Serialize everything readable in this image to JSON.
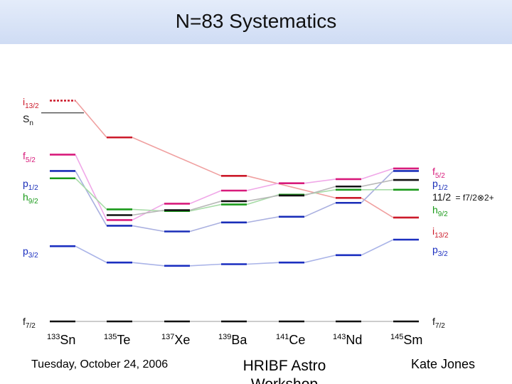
{
  "slide": {
    "title": "N=83 Systematics",
    "footer_date": "Tuesday, October 24, 2006",
    "footer_event": "HRIBF Astro Workshop",
    "footer_author": "Kate Jones"
  },
  "colors": {
    "i13": "#cc1a2a",
    "f5": "#d81b7b",
    "p1": "#1a2eb8",
    "h9": "#1a9a1a",
    "p3": "#1b2fc0",
    "f7": "#111111",
    "sn": "#111111",
    "state112": "#111111"
  },
  "chart_data": {
    "type": "level-scheme",
    "nuclei": [
      {
        "mass": "133",
        "symbol": "Sn"
      },
      {
        "mass": "135",
        "symbol": "Te"
      },
      {
        "mass": "137",
        "symbol": "Xe"
      },
      {
        "mass": "139",
        "symbol": "Ba"
      },
      {
        "mass": "141",
        "symbol": "Ce"
      },
      {
        "mass": "143",
        "symbol": "Nd"
      },
      {
        "mass": "145",
        "symbol": "Sm"
      }
    ],
    "left_labels": [
      {
        "key": "i13",
        "main": "i",
        "sub": "13/2"
      },
      {
        "key": "sn",
        "main": "S",
        "sub": "n"
      },
      {
        "key": "f5",
        "main": "f",
        "sub": "5/2"
      },
      {
        "key": "p1",
        "main": "p",
        "sub": "1/2"
      },
      {
        "key": "h9",
        "main": "h",
        "sub": "9/2"
      },
      {
        "key": "p3",
        "main": "p",
        "sub": "3/2"
      },
      {
        "key": "f7",
        "main": "f",
        "sub": "7/2"
      }
    ],
    "right_labels": [
      {
        "key": "f5",
        "main": "f",
        "sub": "5/2"
      },
      {
        "key": "p1",
        "main": "p",
        "sub": "1/2"
      },
      {
        "key": "state112",
        "main": "11/2",
        "sub": "",
        "extra": "= f7/2⊗2+"
      },
      {
        "key": "h9",
        "main": "h",
        "sub": "9/2"
      },
      {
        "key": "i13",
        "main": "i",
        "sub": "13/2"
      },
      {
        "key": "p3",
        "main": "p",
        "sub": "3/2"
      },
      {
        "key": "f7",
        "main": "f",
        "sub": "7/2"
      }
    ],
    "levels": [
      {
        "key": "i13",
        "name": "i13/2",
        "values": [
          2.7,
          2.25,
          null,
          1.78,
          null,
          1.51,
          1.27
        ],
        "dashed_first": true
      },
      {
        "key": "f5",
        "name": "f5/2",
        "values": [
          2.04,
          1.24,
          1.44,
          1.6,
          1.69,
          1.74,
          1.87
        ]
      },
      {
        "key": "p1",
        "name": "p1/2",
        "values": [
          1.84,
          1.17,
          1.1,
          1.21,
          1.28,
          1.45,
          1.84
        ]
      },
      {
        "key": "h9",
        "name": "h9/2",
        "values": [
          1.75,
          1.37,
          1.35,
          1.43,
          1.55,
          1.61,
          1.61
        ]
      },
      {
        "key": "state112",
        "name": "11/2",
        "values": [
          null,
          1.3,
          1.36,
          1.47,
          1.54,
          1.65,
          1.73
        ]
      },
      {
        "key": "p3",
        "name": "p3/2",
        "values": [
          0.92,
          0.72,
          0.68,
          0.7,
          0.72,
          0.81,
          1.0
        ]
      },
      {
        "key": "f7",
        "name": "f7/2",
        "values": [
          0.0,
          0.0,
          0.0,
          0.0,
          0.0,
          0.0,
          0.0
        ]
      },
      {
        "key": "sn",
        "name": "Sn",
        "values": [
          2.55,
          null,
          null,
          null,
          null,
          null,
          null
        ]
      }
    ],
    "yrange": [
      0,
      3.0
    ]
  }
}
